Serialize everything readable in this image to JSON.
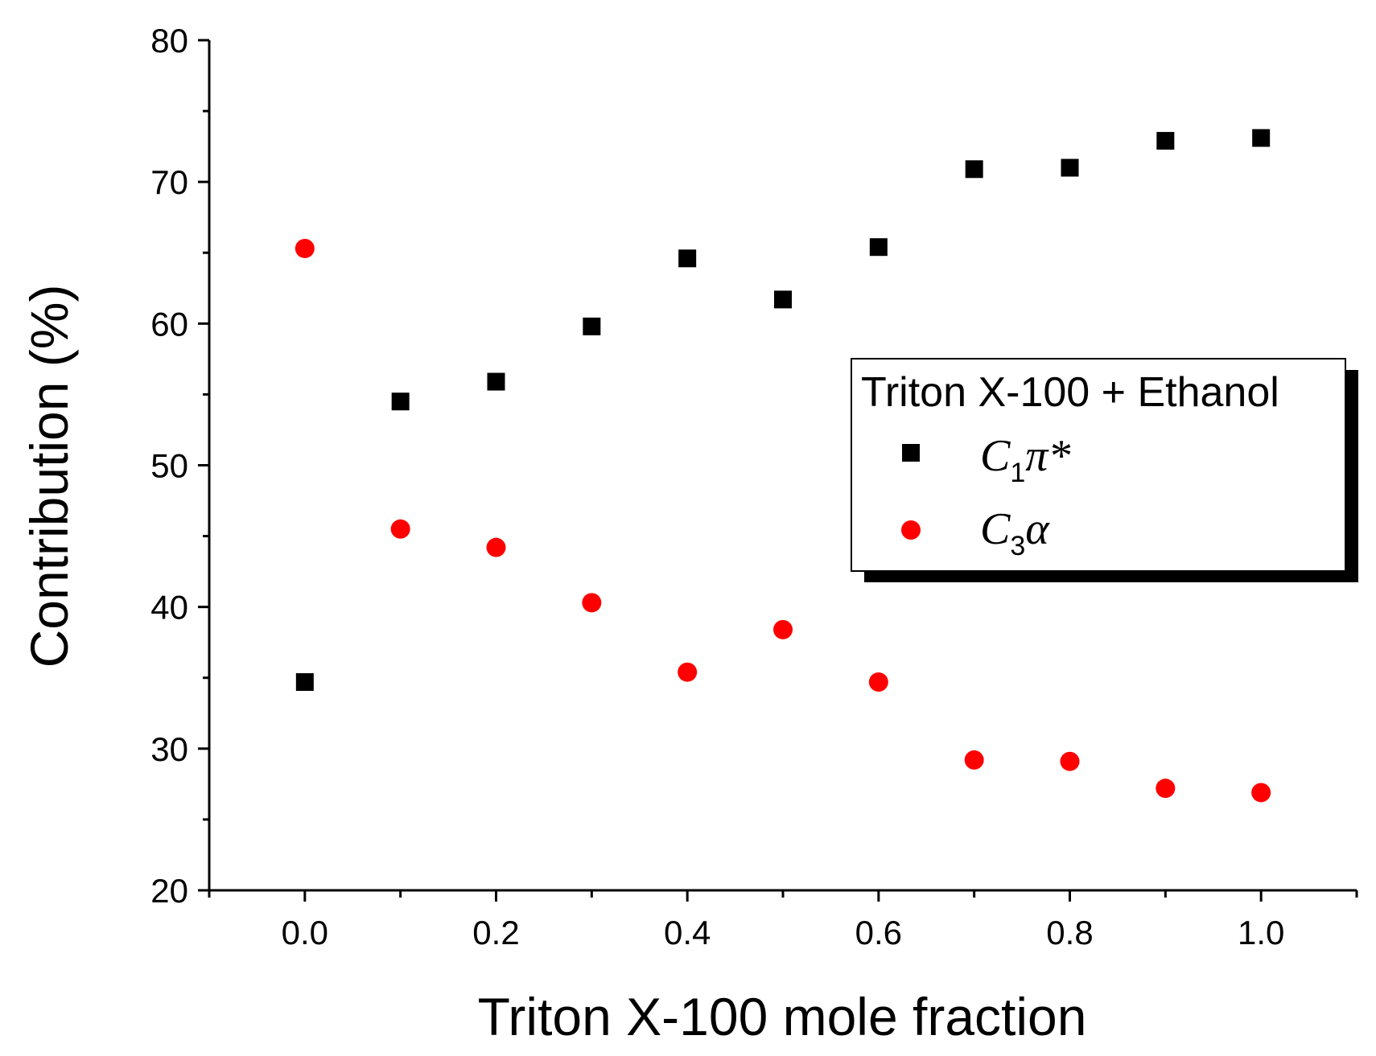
{
  "chart_data": {
    "type": "scatter",
    "title": "",
    "xlabel": "Triton X-100 mole fraction",
    "ylabel": "Contribution (%)",
    "xlim": [
      -0.1,
      1.1
    ],
    "ylim": [
      20,
      80
    ],
    "xticks": [
      0.0,
      0.2,
      0.4,
      0.6,
      0.8,
      1.0
    ],
    "xtick_labels": [
      "0.0",
      "0.2",
      "0.4",
      "0.6",
      "0.8",
      "1.0"
    ],
    "yticks": [
      20,
      30,
      40,
      50,
      60,
      70,
      80
    ],
    "ytick_labels": [
      "20",
      "30",
      "40",
      "50",
      "60",
      "70",
      "80"
    ],
    "grid": false,
    "legend": {
      "title": "Triton X-100 + Ethanol",
      "placement": "center-right"
    },
    "series": [
      {
        "name": "C1π*",
        "label_main": "C",
        "label_sub": "1",
        "label_rest": "π*",
        "marker": "square",
        "color": "#000000",
        "x": [
          0.0,
          0.1,
          0.2,
          0.3,
          0.4,
          0.5,
          0.6,
          0.7,
          0.8,
          0.9,
          1.0
        ],
        "y": [
          34.7,
          54.5,
          55.9,
          59.8,
          64.6,
          61.7,
          65.4,
          70.9,
          71.0,
          72.9,
          73.1
        ]
      },
      {
        "name": "C3α",
        "label_main": "C",
        "label_sub": "3",
        "label_rest": "α",
        "marker": "circle",
        "color": "#ff0000",
        "x": [
          0.0,
          0.1,
          0.2,
          0.3,
          0.4,
          0.5,
          0.6,
          0.7,
          0.8,
          0.9,
          1.0
        ],
        "y": [
          65.3,
          45.5,
          44.2,
          40.3,
          35.4,
          38.4,
          34.7,
          29.2,
          29.1,
          27.2,
          26.9
        ]
      }
    ]
  }
}
